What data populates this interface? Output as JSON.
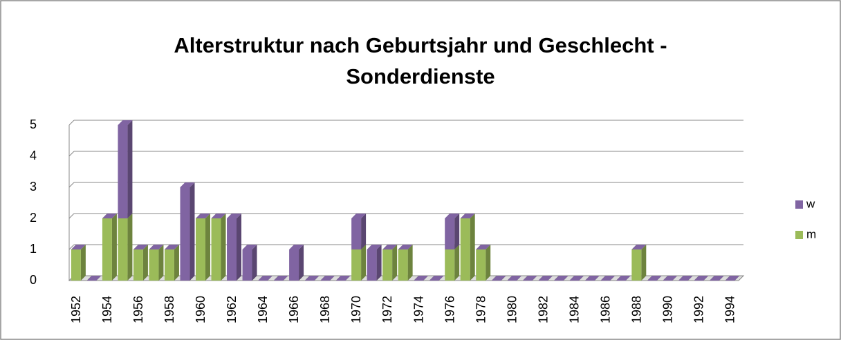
{
  "chart_data": {
    "type": "bar",
    "stacked": true,
    "title": "Alterstruktur nach Geburtsjahr und Geschlecht -",
    "subtitle": "Sonderdienste",
    "categories": [
      "1952",
      null,
      "1954",
      null,
      "1956",
      null,
      "1958",
      null,
      "1960",
      null,
      "1962",
      null,
      "1964",
      null,
      "1966",
      null,
      "1968",
      null,
      "1970",
      null,
      "1972",
      null,
      "1974",
      null,
      "1976",
      null,
      "1978",
      null,
      "1980",
      null,
      "1982",
      null,
      "1984",
      null,
      "1986",
      null,
      "1988",
      null,
      "1990",
      null,
      "1992",
      null,
      "1994"
    ],
    "series": [
      {
        "name": "m",
        "color": "#9bbb59",
        "values": [
          1,
          0,
          2,
          2,
          1,
          1,
          1,
          0,
          2,
          2,
          0,
          0,
          0,
          0,
          0,
          0,
          0,
          0,
          1,
          0,
          1,
          1,
          0,
          0,
          1,
          2,
          1,
          0,
          0,
          0,
          0,
          0,
          0,
          0,
          0,
          0,
          1,
          0,
          0,
          0,
          0,
          0,
          0
        ]
      },
      {
        "name": "w",
        "color": "#8064a2",
        "values": [
          0,
          0,
          0,
          3,
          0,
          0,
          0,
          3,
          0,
          0,
          2,
          1,
          0,
          0,
          1,
          0,
          0,
          0,
          1,
          1,
          0,
          0,
          0,
          0,
          1,
          0,
          0,
          0,
          0,
          0,
          0,
          0,
          0,
          0,
          0,
          0,
          0,
          0,
          0,
          0,
          0,
          0,
          0
        ]
      }
    ],
    "ylim": [
      0,
      5
    ],
    "yticks": [
      0,
      1,
      2,
      3,
      4,
      5
    ],
    "grid": true,
    "legend": "right"
  }
}
